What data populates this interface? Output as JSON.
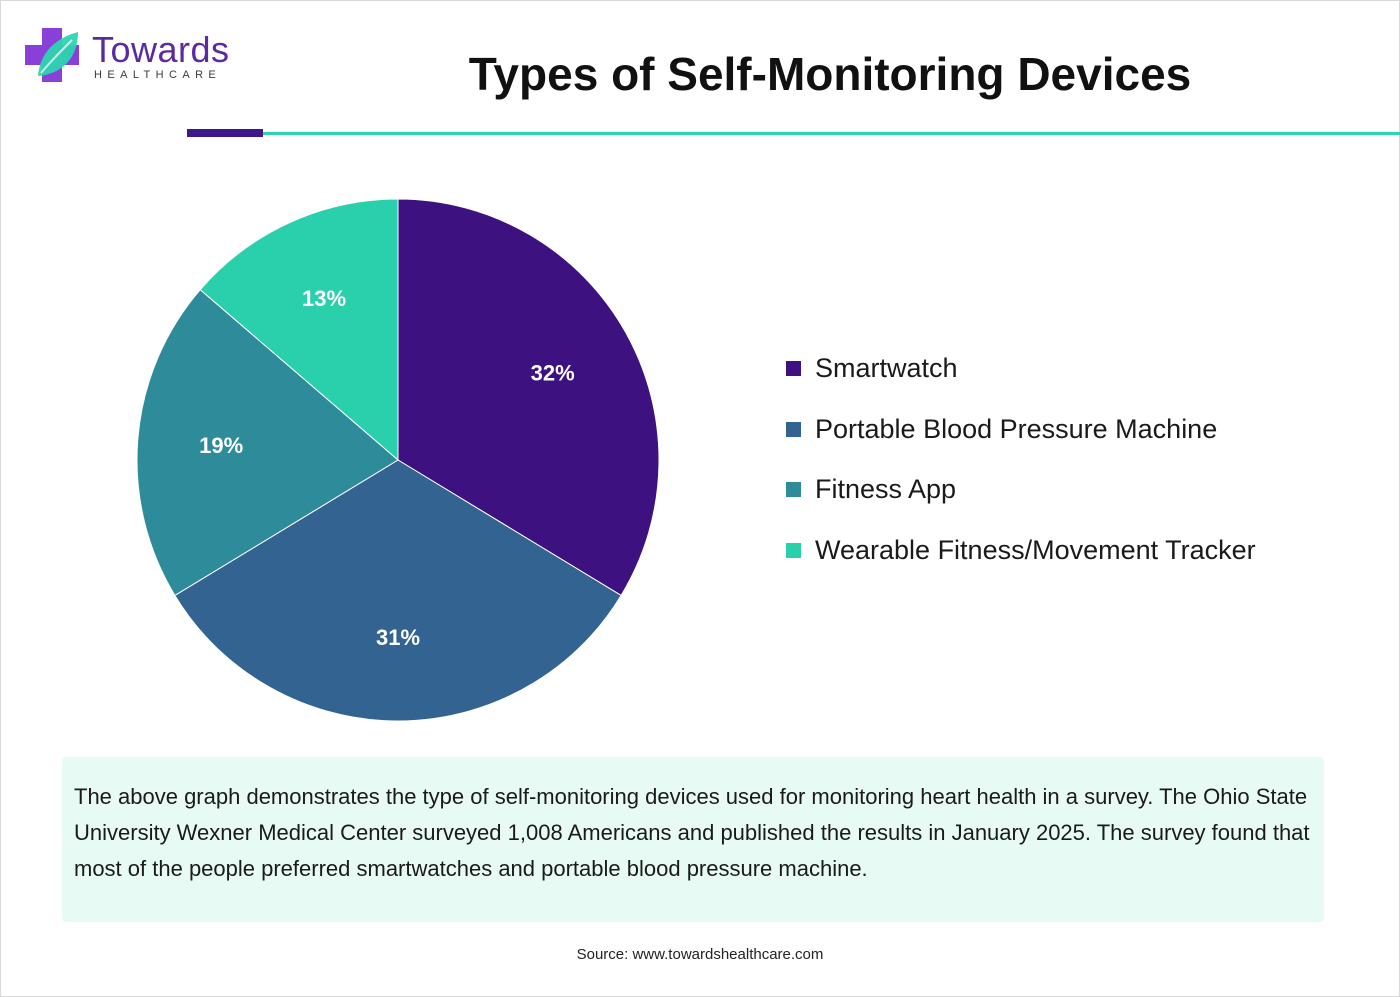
{
  "brand": {
    "name": "Towards",
    "tagline": "HEALTHCARE",
    "colors": {
      "purple": "#5b2a9e",
      "violet": "#8b3fd9",
      "teal": "#2dd4b0"
    }
  },
  "header": {
    "title": "Types of Self-Monitoring Devices",
    "rule_colors": [
      "#3d1a8c",
      "#2dd4b0"
    ]
  },
  "chart_data": {
    "type": "pie",
    "title": "Types of Self-Monitoring Devices",
    "labels": [
      "Smartwatch",
      "Portable Blood Pressure Machine",
      "Fitness App",
      "Wearable Fitness/Movement Tracker"
    ],
    "values": [
      32,
      31,
      19,
      13
    ],
    "value_labels": [
      "32%",
      "31%",
      "19%",
      "13%"
    ],
    "colors": [
      "#3d1180",
      "#336391",
      "#2e8b9a",
      "#2acfab"
    ],
    "legend_position": "right"
  },
  "note": {
    "text": "The above graph demonstrates the type of self-monitoring devices used for monitoring heart health in a survey. The Ohio State University Wexner Medical Center surveyed 1,008 Americans and published the results in January 2025. The survey found that most of the people preferred smartwatches and portable blood pressure machine."
  },
  "footer": {
    "source": "Source: www.towardshealthcare.com"
  }
}
